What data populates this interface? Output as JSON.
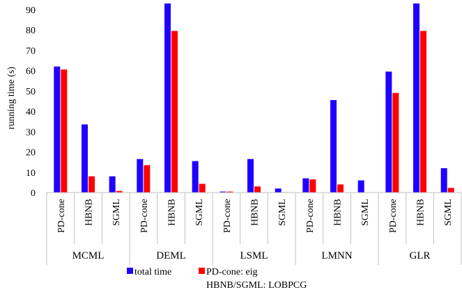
{
  "chart_data": {
    "type": "bar",
    "ylabel": "running time (s)",
    "ylim": [
      0,
      93
    ],
    "yticks": [
      0,
      10,
      20,
      30,
      40,
      50,
      60,
      70,
      80,
      90
    ],
    "grid": false,
    "legend_position": "bottom",
    "groups": [
      "MCML",
      "DEML",
      "LSML",
      "LMNN",
      "GLR"
    ],
    "methods": [
      "PD-cone",
      "HBNB",
      "SGML"
    ],
    "series": [
      {
        "name": "total time",
        "color": "#1f00ff",
        "values": [
          62.0,
          33.5,
          8.0,
          16.5,
          93.0,
          15.5,
          0.5,
          16.5,
          2.0,
          7.0,
          45.5,
          6.0,
          59.5,
          93.0,
          12.0
        ]
      },
      {
        "name": "PD-cone: eig",
        "name_line2": "HBNB/SGML: LOBPCG",
        "color": "#ff0000",
        "values": [
          60.5,
          8.0,
          0.8,
          13.5,
          79.5,
          4.3,
          0.5,
          3.0,
          0.2,
          6.5,
          4.0,
          0.0,
          49.0,
          79.5,
          2.3
        ]
      }
    ]
  }
}
